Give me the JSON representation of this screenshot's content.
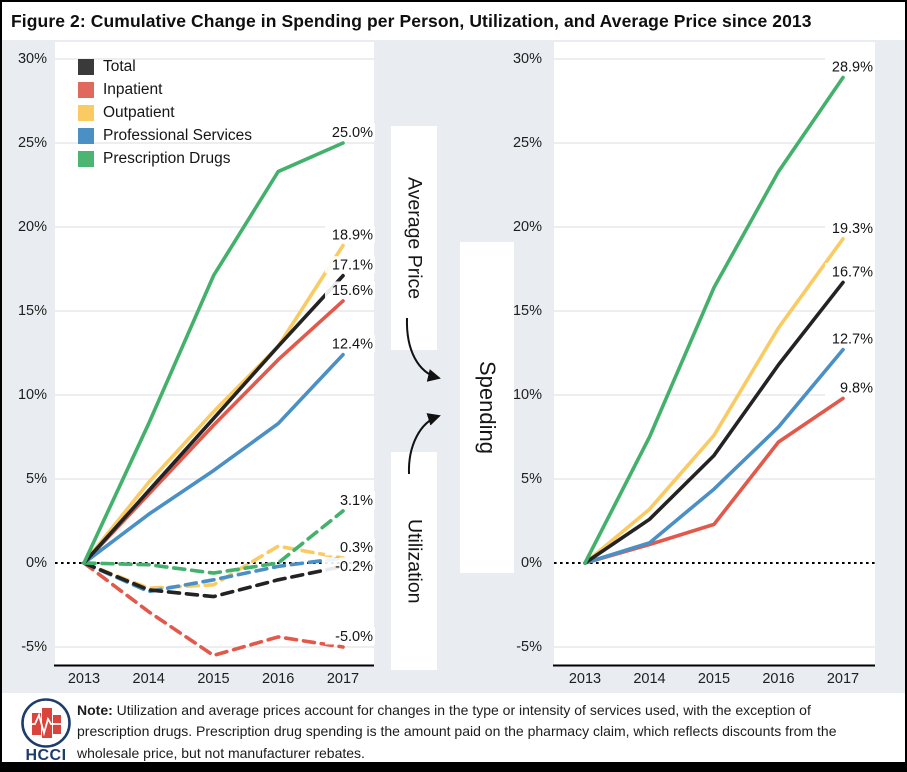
{
  "figure": {
    "title": "Figure 2: Cumulative Change in Spending per Person, Utilization, and Average Price since 2013"
  },
  "colors": {
    "background": "#e9edf2",
    "panel": "#ffffff",
    "grid": "#d8dde2",
    "axis": "#000000",
    "zero_line": "#000000",
    "navy": "#1d3d6d",
    "logo_red": "#d9453c",
    "total": "#232323",
    "inpatient": "#e2594c",
    "outpatient": "#fbcb63",
    "professional_services": "#4b90c5",
    "prescription_drugs": "#43b16b"
  },
  "legend": {
    "items": [
      {
        "label": "Total",
        "color": "#3a3a3a"
      },
      {
        "label": "Inpatient",
        "color": "#e0695e"
      },
      {
        "label": "Outpatient",
        "color": "#fbcb63"
      },
      {
        "label": "Professional Services",
        "color": "#4b90c5"
      },
      {
        "label": "Prescription Drugs",
        "color": "#4cb572"
      }
    ]
  },
  "flow_labels": {
    "average_price": "Average Price",
    "spending": "Spending",
    "utilization": "Utilization"
  },
  "axes": {
    "yticks": [
      "30%",
      "25%",
      "20%",
      "15%",
      "10%",
      "5%",
      "0%",
      "-5%"
    ],
    "years": [
      "2013",
      "2014",
      "2015",
      "2016",
      "2017"
    ]
  },
  "chart_data": [
    {
      "type": "line",
      "panel": "left",
      "description": "Average Price (solid lines) and Utilization (dashed lines), cumulative change since 2013",
      "x": [
        2013,
        2014,
        2015,
        2016,
        2017
      ],
      "ylim": [
        -7.5,
        31
      ],
      "grid": true,
      "series": [
        {
          "name": "Total",
          "metric": "Average Price",
          "style": "solid",
          "color": "#232323",
          "values": [
            0,
            4.3,
            8.6,
            12.9,
            17.1
          ],
          "end_label": "17.1%"
        },
        {
          "name": "Inpatient",
          "metric": "Average Price",
          "style": "solid",
          "color": "#e2594c",
          "values": [
            0,
            4.1,
            8.2,
            12.1,
            15.6
          ],
          "end_label": "15.6%"
        },
        {
          "name": "Outpatient",
          "metric": "Average Price",
          "style": "solid",
          "color": "#fbcb63",
          "values": [
            0,
            4.8,
            9.0,
            12.9,
            18.9
          ],
          "end_label": "18.9%"
        },
        {
          "name": "Professional Services",
          "metric": "Average Price",
          "style": "solid",
          "color": "#4b90c5",
          "values": [
            0,
            2.9,
            5.5,
            8.3,
            12.4
          ],
          "end_label": "12.4%"
        },
        {
          "name": "Prescription Drugs",
          "metric": "Average Price",
          "style": "solid",
          "color": "#43b16b",
          "values": [
            0,
            8.3,
            17.1,
            23.3,
            25.0
          ],
          "end_label": "25.0%"
        },
        {
          "name": "Total",
          "metric": "Utilization",
          "style": "dashed",
          "color": "#232323",
          "values": [
            0,
            -1.6,
            -2.0,
            -1.0,
            -0.2
          ],
          "end_label": "-0.2%"
        },
        {
          "name": "Inpatient",
          "metric": "Utilization",
          "style": "dashed",
          "color": "#e2594c",
          "values": [
            0,
            -2.9,
            -5.5,
            -4.4,
            -5.0
          ],
          "end_label": "-5.0%"
        },
        {
          "name": "Outpatient",
          "metric": "Utilization",
          "style": "dashed",
          "color": "#fbcb63",
          "values": [
            0,
            -1.5,
            -1.3,
            1.0,
            0.3
          ],
          "end_label": "0.3%"
        },
        {
          "name": "Professional Services",
          "metric": "Utilization",
          "style": "dashed",
          "color": "#4b90c5",
          "values": [
            0,
            -1.7,
            -1.0,
            -0.2,
            0.3
          ],
          "end_label": ""
        },
        {
          "name": "Prescription Drugs",
          "metric": "Utilization",
          "style": "dashed",
          "color": "#43b16b",
          "values": [
            0,
            -0.1,
            -0.6,
            0.0,
            3.1
          ],
          "end_label": "3.1%"
        }
      ]
    },
    {
      "type": "line",
      "panel": "right",
      "description": "Spending per person, cumulative change since 2013",
      "x": [
        2013,
        2014,
        2015,
        2016,
        2017
      ],
      "ylim": [
        -7.5,
        31
      ],
      "grid": true,
      "series": [
        {
          "name": "Total",
          "metric": "Spending",
          "style": "solid",
          "color": "#232323",
          "values": [
            0,
            2.6,
            6.4,
            11.8,
            16.7
          ],
          "end_label": "16.7%"
        },
        {
          "name": "Inpatient",
          "metric": "Spending",
          "style": "solid",
          "color": "#e2594c",
          "values": [
            0,
            1.1,
            2.3,
            7.2,
            9.8
          ],
          "end_label": "9.8%"
        },
        {
          "name": "Outpatient",
          "metric": "Spending",
          "style": "solid",
          "color": "#fbcb63",
          "values": [
            0,
            3.2,
            7.6,
            14.0,
            19.3
          ],
          "end_label": "19.3%"
        },
        {
          "name": "Professional Services",
          "metric": "Spending",
          "style": "solid",
          "color": "#4b90c5",
          "values": [
            0,
            1.2,
            4.4,
            8.1,
            12.7
          ],
          "end_label": "12.7%"
        },
        {
          "name": "Prescription Drugs",
          "metric": "Spending",
          "style": "solid",
          "color": "#43b16b",
          "values": [
            0,
            7.5,
            16.4,
            23.3,
            28.9
          ],
          "end_label": "28.9%"
        }
      ]
    }
  ],
  "note": {
    "label": "Note:",
    "text": " Utilization and average prices account for changes in the type or intensity of services used, with the exception of prescription drugs. Prescription drug spending is the amount paid on the pharmacy claim, which reflects discounts from the wholesale price, but not manufacturer rebates."
  },
  "logo": {
    "text": "HCCI"
  }
}
